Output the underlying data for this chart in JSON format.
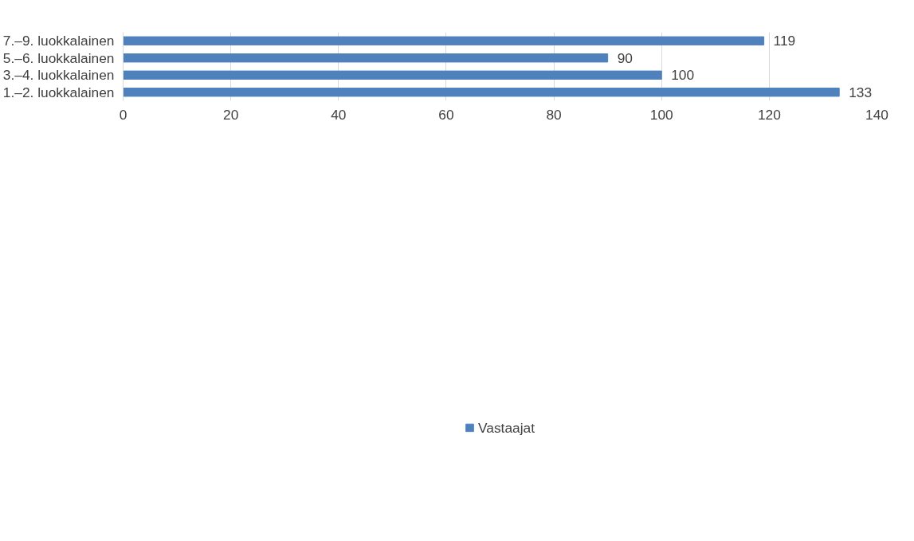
{
  "chart_data": {
    "type": "bar",
    "orientation": "horizontal",
    "categories": [
      "7.–9. luokkalainen",
      "5.–6. luokkalainen",
      "3.–4. luokkalainen",
      "1.–2. luokkalainen"
    ],
    "series": [
      {
        "name": "Vastaajat",
        "color": "#4f81bd",
        "values": [
          119,
          90,
          100,
          133
        ]
      }
    ],
    "xlim": [
      0,
      140
    ],
    "xticks": [
      0,
      20,
      40,
      60,
      80,
      100,
      120,
      140
    ],
    "grid": "x",
    "legend": "bottom",
    "data_labels": true
  }
}
